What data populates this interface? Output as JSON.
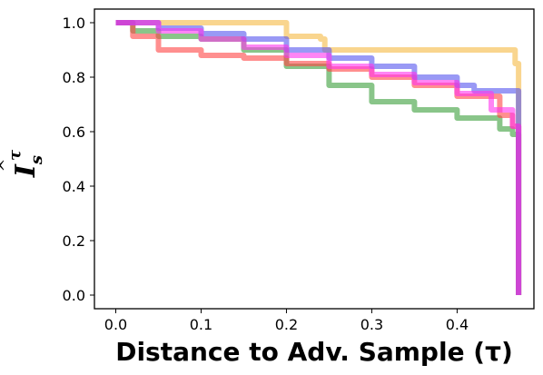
{
  "chart_data": {
    "type": "line",
    "title": "",
    "xlabel": "Distance to Adv. Sample (τ)",
    "ylabel": {
      "base": "I",
      "sub": "s",
      "sup": "τ",
      "hat": "^"
    },
    "xlim": [
      -0.025,
      0.49
    ],
    "ylim": [
      -0.05,
      1.05
    ],
    "x_ticks": [
      0.0,
      0.1,
      0.2,
      0.3,
      0.4
    ],
    "x_tick_labels": [
      "0.0",
      "0.1",
      "0.2",
      "0.3",
      "0.4"
    ],
    "y_ticks": [
      0.0,
      0.2,
      0.4,
      0.6,
      0.8,
      1.0
    ],
    "y_tick_labels": [
      "0.0",
      "0.2",
      "0.4",
      "0.6",
      "0.8",
      "1.0"
    ],
    "grid": false,
    "series": [
      {
        "color": "#f5b942",
        "points": [
          [
            0.0,
            1.0
          ],
          [
            0.1,
            1.0
          ],
          [
            0.2,
            0.95
          ],
          [
            0.24,
            0.94
          ],
          [
            0.245,
            0.9
          ],
          [
            0.46,
            0.9
          ],
          [
            0.468,
            0.85
          ],
          [
            0.472,
            0.0
          ]
        ]
      },
      {
        "color": "#3a9e3a",
        "points": [
          [
            0.0,
            1.0
          ],
          [
            0.02,
            0.97
          ],
          [
            0.05,
            0.95
          ],
          [
            0.1,
            0.94
          ],
          [
            0.15,
            0.9
          ],
          [
            0.2,
            0.84
          ],
          [
            0.25,
            0.77
          ],
          [
            0.3,
            0.71
          ],
          [
            0.35,
            0.68
          ],
          [
            0.4,
            0.65
          ],
          [
            0.45,
            0.61
          ],
          [
            0.465,
            0.59
          ],
          [
            0.472,
            0.0
          ]
        ]
      },
      {
        "color": "#ff4444",
        "points": [
          [
            0.0,
            1.0
          ],
          [
            0.02,
            0.95
          ],
          [
            0.05,
            0.9
          ],
          [
            0.1,
            0.88
          ],
          [
            0.15,
            0.87
          ],
          [
            0.2,
            0.85
          ],
          [
            0.25,
            0.83
          ],
          [
            0.3,
            0.8
          ],
          [
            0.35,
            0.77
          ],
          [
            0.4,
            0.73
          ],
          [
            0.45,
            0.66
          ],
          [
            0.465,
            0.62
          ],
          [
            0.472,
            0.0
          ]
        ]
      },
      {
        "color": "#5555ee",
        "points": [
          [
            0.0,
            1.0
          ],
          [
            0.05,
            0.98
          ],
          [
            0.1,
            0.96
          ],
          [
            0.15,
            0.94
          ],
          [
            0.2,
            0.9
          ],
          [
            0.25,
            0.87
          ],
          [
            0.3,
            0.84
          ],
          [
            0.35,
            0.8
          ],
          [
            0.4,
            0.77
          ],
          [
            0.42,
            0.75
          ],
          [
            0.465,
            0.75
          ],
          [
            0.472,
            0.0
          ]
        ]
      },
      {
        "color": "#ff33ee",
        "points": [
          [
            0.0,
            1.0
          ],
          [
            0.05,
            0.97
          ],
          [
            0.1,
            0.94
          ],
          [
            0.15,
            0.91
          ],
          [
            0.2,
            0.88
          ],
          [
            0.25,
            0.84
          ],
          [
            0.3,
            0.81
          ],
          [
            0.35,
            0.78
          ],
          [
            0.4,
            0.74
          ],
          [
            0.44,
            0.68
          ],
          [
            0.465,
            0.62
          ],
          [
            0.472,
            0.0
          ]
        ]
      }
    ]
  }
}
